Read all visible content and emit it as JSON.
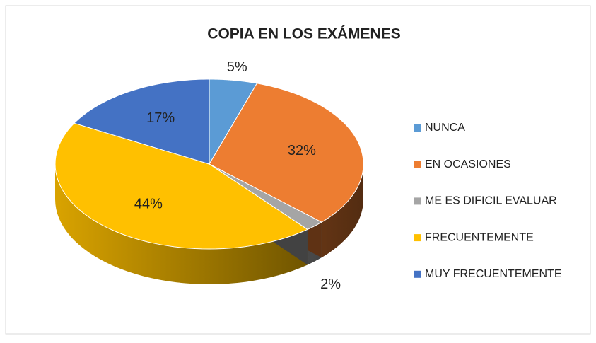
{
  "chart_data": {
    "type": "pie",
    "title": "COPIA EN LOS EXÁMENES",
    "categories": [
      "NUNCA",
      "EN OCASIONES",
      "ME ES DIFICIL EVALUAR",
      "FRECUENTEMENTE",
      "MUY FRECUENTEMENTE"
    ],
    "values": [
      5,
      32,
      2,
      44,
      17
    ],
    "value_labels": [
      "5%",
      "32%",
      "2%",
      "44%",
      "17%"
    ],
    "colors": [
      "#5b9bd5",
      "#ed7d31",
      "#a5a5a5",
      "#ffc000",
      "#4472c4"
    ],
    "legend": "right"
  }
}
